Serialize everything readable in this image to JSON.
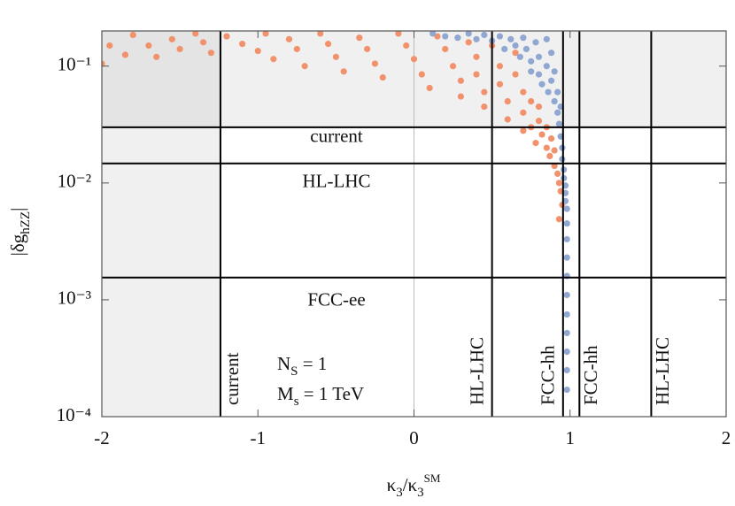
{
  "chart_data": {
    "type": "scatter",
    "x_label": [
      {
        "text": "κ"
      },
      {
        "text": "3",
        "shift": "sub"
      },
      {
        "text": "/κ"
      },
      {
        "text": "3",
        "shift": "sub"
      },
      {
        "text": "SM",
        "shift": "sup"
      }
    ],
    "y_label": [
      {
        "text": "|δg"
      },
      {
        "text": "hZZ",
        "shift": "sub"
      },
      {
        "text": "|"
      }
    ],
    "xlim": [
      -2,
      2
    ],
    "xticks": [
      -2,
      -1,
      0,
      1,
      2
    ],
    "ylim": [
      0.0001,
      0.2
    ],
    "ylog": true,
    "yticks": [
      {
        "value": 0.0001,
        "label": "10⁻⁴"
      },
      {
        "value": 0.001,
        "label": "10⁻³"
      },
      {
        "value": 0.01,
        "label": "10⁻²"
      },
      {
        "value": 0.1,
        "label": "10⁻¹"
      }
    ],
    "hlines": [
      {
        "value": 0.03,
        "label": "current"
      },
      {
        "value": 0.0147,
        "label": "HL-LHC"
      },
      {
        "value": 0.00155,
        "label": "FCC-ee"
      }
    ],
    "vlines": [
      {
        "value": -1.24,
        "label": "current"
      },
      {
        "value": 0.5,
        "label": "HL-LHC"
      },
      {
        "value": 0.955,
        "label": "FCC-hh"
      },
      {
        "value": 1.06,
        "label": "FCC-hh"
      },
      {
        "value": 1.52,
        "label": "HL-LHC"
      }
    ],
    "annotations": [
      [
        {
          "text": "N"
        },
        {
          "text": "S",
          "shift": "sub"
        },
        {
          "text": " = 1"
        }
      ],
      [
        {
          "text": "M"
        },
        {
          "text": "s",
          "shift": "sub"
        },
        {
          "text": " = 1 TeV"
        }
      ]
    ],
    "series": [
      {
        "color": "#f2926c",
        "x": [
          -2.0,
          -1.95,
          -1.85,
          -1.8,
          -1.7,
          -1.65,
          -1.55,
          -1.5,
          -1.4,
          -1.35,
          -1.3,
          -1.2,
          -1.1,
          -1.0,
          -0.95,
          -0.9,
          -0.8,
          -0.75,
          -0.7,
          -0.6,
          -0.55,
          -0.5,
          -0.45,
          -0.35,
          -0.3,
          -0.25,
          -0.2,
          -0.1,
          -0.05,
          0.0,
          0.05,
          0.1,
          0.15,
          0.2,
          0.25,
          0.3,
          0.3,
          0.35,
          0.4,
          0.4,
          0.45,
          0.45,
          0.5,
          0.55,
          0.55,
          0.6,
          0.6,
          0.65,
          0.65,
          0.7,
          0.7,
          0.7,
          0.75,
          0.75,
          0.78,
          0.8,
          0.8,
          0.82,
          0.85,
          0.85,
          0.87,
          0.88,
          0.9,
          0.9,
          0.92,
          0.93,
          0.94,
          0.95,
          0.93
        ],
        "values": [
          0.105,
          0.15,
          0.125,
          0.185,
          0.15,
          0.12,
          0.17,
          0.14,
          0.19,
          0.16,
          0.13,
          0.18,
          0.155,
          0.135,
          0.19,
          0.115,
          0.17,
          0.14,
          0.1,
          0.19,
          0.155,
          0.12,
          0.09,
          0.175,
          0.14,
          0.105,
          0.08,
          0.19,
          0.15,
          0.115,
          0.085,
          0.065,
          0.18,
          0.14,
          0.1,
          0.075,
          0.055,
          0.16,
          0.12,
          0.085,
          0.06,
          0.045,
          0.15,
          0.1,
          0.07,
          0.05,
          0.035,
          0.13,
          0.085,
          0.06,
          0.04,
          0.028,
          0.05,
          0.03,
          0.022,
          0.045,
          0.034,
          0.026,
          0.03,
          0.02,
          0.017,
          0.024,
          0.014,
          0.019,
          0.012,
          0.01,
          0.0085,
          0.0065,
          0.0049
        ]
      },
      {
        "color": "#8fa7d1",
        "x": [
          0.12,
          0.2,
          0.28,
          0.35,
          0.4,
          0.45,
          0.5,
          0.55,
          0.58,
          0.62,
          0.65,
          0.68,
          0.7,
          0.72,
          0.75,
          0.75,
          0.78,
          0.8,
          0.8,
          0.82,
          0.85,
          0.85,
          0.86,
          0.88,
          0.88,
          0.9,
          0.9,
          0.92,
          0.92,
          0.93,
          0.94,
          0.94,
          0.95,
          0.95,
          0.96,
          0.96,
          0.97,
          0.97,
          0.97,
          0.98,
          0.98,
          0.98,
          0.98,
          0.98,
          0.98,
          0.98,
          0.98,
          0.98,
          0.98,
          0.98
        ],
        "values": [
          0.19,
          0.18,
          0.175,
          0.19,
          0.17,
          0.185,
          0.165,
          0.18,
          0.14,
          0.17,
          0.15,
          0.12,
          0.175,
          0.14,
          0.11,
          0.09,
          0.16,
          0.12,
          0.085,
          0.07,
          0.17,
          0.1,
          0.06,
          0.13,
          0.075,
          0.05,
          0.09,
          0.06,
          0.04,
          0.032,
          0.045,
          0.025,
          0.02,
          0.016,
          0.013,
          0.011,
          0.0095,
          0.0082,
          0.007,
          0.006,
          0.0045,
          0.0033,
          0.0023,
          0.0016,
          0.0011,
          0.00075,
          0.00052,
          0.00036,
          0.00025,
          0.00017
        ]
      }
    ]
  }
}
